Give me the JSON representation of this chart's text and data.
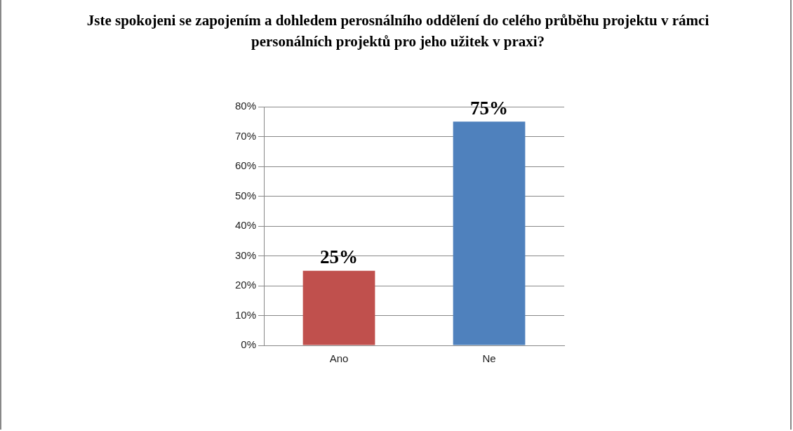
{
  "chart_data": {
    "type": "bar",
    "title": "Jste spokojeni se zapojením a dohledem perosnálního oddělení do celého průběhu projektu v rámci personálních projektů pro jeho užitek v praxi?",
    "categories": [
      "Ano",
      "Ne"
    ],
    "values": [
      25,
      75
    ],
    "colors": [
      "#c0504d",
      "#4f81bd"
    ],
    "value_labels": [
      "25%",
      "75%"
    ],
    "ylim": [
      0,
      80
    ],
    "yticks": [
      {
        "value": 0,
        "label": "0%"
      },
      {
        "value": 10,
        "label": "10%"
      },
      {
        "value": 20,
        "label": "20%"
      },
      {
        "value": 30,
        "label": "30%"
      },
      {
        "value": 40,
        "label": "40%"
      },
      {
        "value": 50,
        "label": "50%"
      },
      {
        "value": 60,
        "label": "60%"
      },
      {
        "value": 70,
        "label": "70%"
      },
      {
        "value": 80,
        "label": "80%"
      }
    ],
    "grid": "y"
  }
}
